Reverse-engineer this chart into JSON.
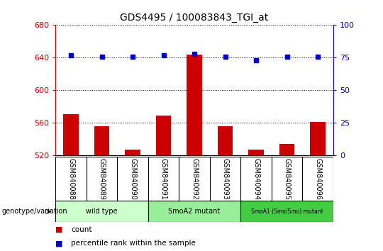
{
  "title": "GDS4495 / 100083843_TGI_at",
  "samples": [
    "GSM840088",
    "GSM840089",
    "GSM840090",
    "GSM840091",
    "GSM840092",
    "GSM840093",
    "GSM840094",
    "GSM840095",
    "GSM840096"
  ],
  "counts": [
    571,
    556,
    527,
    569,
    644,
    556,
    527,
    534,
    561
  ],
  "percentile_ranks": [
    77,
    76,
    76,
    77,
    78,
    76,
    73,
    76,
    76
  ],
  "ylim_left": [
    520,
    680
  ],
  "ylim_right": [
    0,
    100
  ],
  "yticks_left": [
    520,
    560,
    600,
    640,
    680
  ],
  "yticks_right": [
    0,
    25,
    50,
    75,
    100
  ],
  "groups": [
    {
      "label": "wild type",
      "indices": [
        0,
        1,
        2
      ],
      "color": "#ccffcc"
    },
    {
      "label": "SmoA2 mutant",
      "indices": [
        3,
        4,
        5
      ],
      "color": "#99ee99"
    },
    {
      "label": "SmoA1 (Smo/Smo) mutant",
      "indices": [
        6,
        7,
        8
      ],
      "color": "#44cc44"
    }
  ],
  "bar_color": "#cc0000",
  "dot_color": "#0000cc",
  "bar_width": 0.5,
  "genotype_label": "genotype/variation",
  "legend_count_label": "count",
  "legend_percentile_label": "percentile rank within the sample",
  "left_axis_color": "#cc0000",
  "right_axis_color": "#0000cc",
  "grid_color": "black",
  "sample_bg_color": "#d0d0d0",
  "fig_width": 5.4,
  "fig_height": 3.54,
  "dpi": 100
}
